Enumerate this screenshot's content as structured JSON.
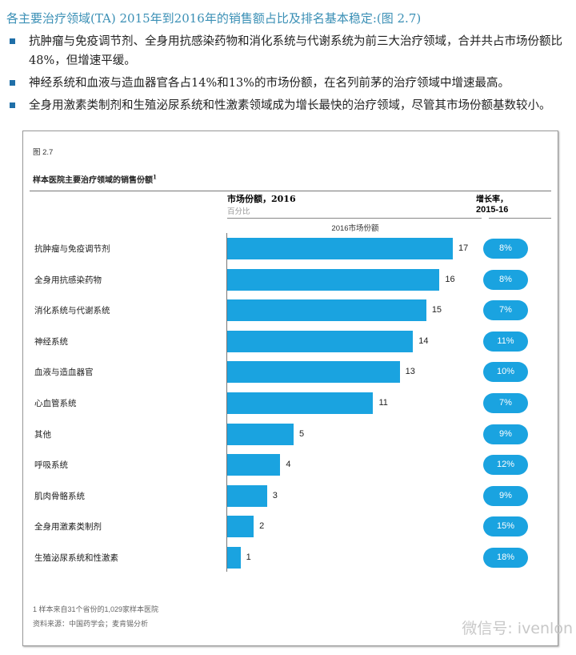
{
  "header": {
    "title": "各主要治疗领域(TA) 2015年到2016年的销售额占比及排名基本稳定:(图 2.7)",
    "bullets": [
      "抗肿瘤与免疫调节剂、全身用抗感染药物和消化系统与代谢系统为前三大治疗领域，合并共占市场份额比48%，但增速平缓。",
      "神经系统和血液与造血器官各占14%和13%的市场份额，在名列前茅的治疗领域中增速最高。",
      "全身用激素类制剂和生殖泌尿系统和性激素领域成为增长最快的治疗领域，尽管其市场份额基数较小。"
    ]
  },
  "figure": {
    "number": "图 2.7",
    "title": "样本医院主要治疗领域的销售份额",
    "title_sup": "1",
    "col1_title": "市场份额，2016",
    "col1_sub": "百分比",
    "col2_title1": "增长率，",
    "col2_title2": "2015-16",
    "axis_label": "2016市场份额",
    "footnote": "1 样本来自31个省份的1,029家样本医院",
    "source": "资料来源：中国药学会；麦肯锡分析"
  },
  "watermark": "微信号: ivenlon",
  "colors": {
    "bar": "#1aa3e0",
    "title": "#3a8fb5"
  },
  "chart_data": {
    "type": "bar",
    "orientation": "horizontal",
    "title": "样本医院主要治疗领域的销售份额",
    "xlabel": "2016市场份额",
    "unit": "%",
    "xlim": [
      0,
      17
    ],
    "categories": [
      "抗肿瘤与免疫调节剂",
      "全身用抗感染药物",
      "消化系统与代谢系统",
      "神经系统",
      "血液与造血器官",
      "心血管系统",
      "其他",
      "呼吸系统",
      "肌肉骨骼系统",
      "全身用激素类制剂",
      "生殖泌尿系统和性激素"
    ],
    "series": [
      {
        "name": "市场份额，2016",
        "values": [
          17,
          16,
          15,
          14,
          13,
          11,
          5,
          4,
          3,
          2,
          1
        ]
      },
      {
        "name": "增长率，2015-16",
        "values": [
          "8%",
          "8%",
          "7%",
          "11%",
          "10%",
          "7%",
          "9%",
          "12%",
          "9%",
          "15%",
          "18%"
        ]
      }
    ]
  }
}
